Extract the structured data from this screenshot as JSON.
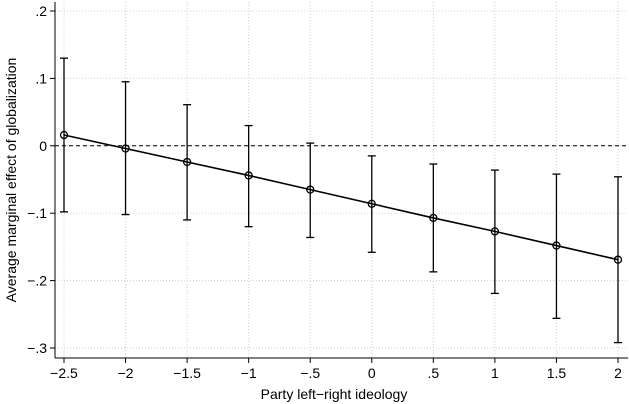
{
  "chart_data": {
    "type": "line",
    "xlabel": "Party left−right ideology",
    "ylabel": "Average marginal effect of globalization",
    "x": [
      -2.5,
      -2,
      -1.5,
      -1,
      -0.5,
      0,
      0.5,
      1,
      1.5,
      2
    ],
    "series": [
      {
        "color": "#000000",
        "values": [
          0.016,
          -0.004,
          -0.024,
          -0.044,
          -0.065,
          -0.086,
          -0.107,
          -0.127,
          -0.148,
          -0.169
        ],
        "lower": [
          -0.098,
          -0.102,
          -0.11,
          -0.12,
          -0.136,
          -0.158,
          -0.187,
          -0.219,
          -0.256,
          -0.292
        ],
        "upper": [
          0.13,
          0.095,
          0.061,
          0.03,
          0.004,
          -0.015,
          -0.027,
          -0.036,
          -0.042,
          -0.046
        ]
      }
    ],
    "xlim": [
      -2.5,
      2
    ],
    "ylim": [
      -0.3,
      0.2
    ],
    "xticks": [
      {
        "value": -2.5,
        "label": "−2.5"
      },
      {
        "value": -2,
        "label": "−2"
      },
      {
        "value": -1.5,
        "label": "−1.5"
      },
      {
        "value": -1,
        "label": "−1"
      },
      {
        "value": -0.5,
        "label": "−.5"
      },
      0,
      {
        "value": 0.5,
        "label": ".5"
      },
      1,
      1.5,
      2
    ],
    "yticks": [
      {
        "value": -0.3,
        "label": "−.3"
      },
      {
        "value": -0.2,
        "label": "−.2"
      },
      {
        "value": -0.1,
        "label": "−.1"
      },
      0,
      {
        "value": 0.1,
        "label": ".1"
      },
      {
        "value": 0.2,
        "label": ".2"
      }
    ],
    "grid": true,
    "hline": 0
  }
}
